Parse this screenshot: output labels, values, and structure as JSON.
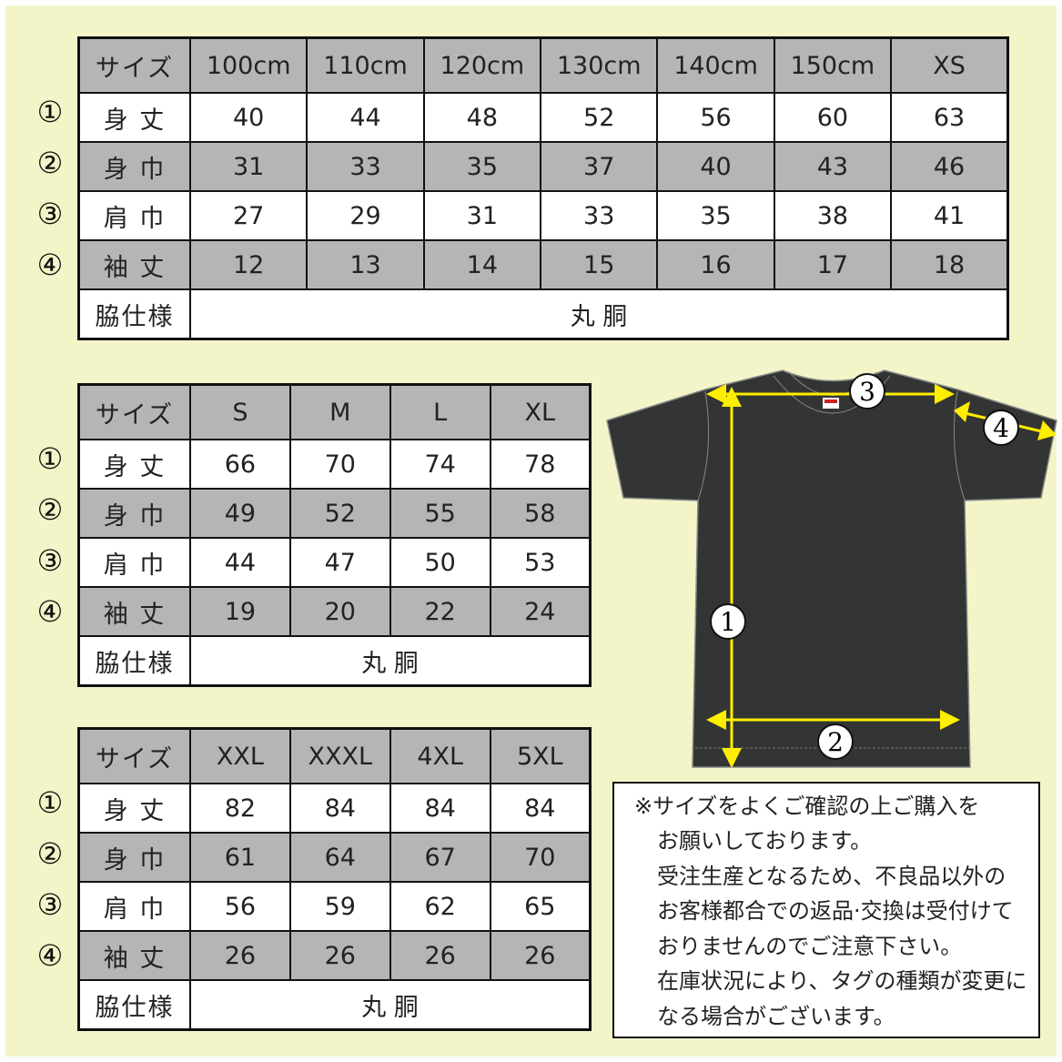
{
  "tables": [
    {
      "headers": [
        "サイズ",
        "100cm",
        "110cm",
        "120cm",
        "130cm",
        "140cm",
        "150cm",
        "XS"
      ],
      "rows": [
        {
          "marker": "①",
          "label": "身 丈",
          "values": [
            "40",
            "44",
            "48",
            "52",
            "56",
            "60",
            "63"
          ]
        },
        {
          "marker": "②",
          "label": "身 巾",
          "values": [
            "31",
            "33",
            "35",
            "37",
            "40",
            "43",
            "46"
          ]
        },
        {
          "marker": "③",
          "label": "肩 巾",
          "values": [
            "27",
            "29",
            "31",
            "33",
            "35",
            "38",
            "41"
          ]
        },
        {
          "marker": "④",
          "label": "袖 丈",
          "values": [
            "12",
            "13",
            "14",
            "15",
            "16",
            "17",
            "18"
          ]
        }
      ],
      "footer": {
        "label": "脇仕様",
        "value": "丸 胴"
      }
    },
    {
      "headers": [
        "サイズ",
        "S",
        "M",
        "L",
        "XL"
      ],
      "rows": [
        {
          "marker": "①",
          "label": "身 丈",
          "values": [
            "66",
            "70",
            "74",
            "78"
          ]
        },
        {
          "marker": "②",
          "label": "身 巾",
          "values": [
            "49",
            "52",
            "55",
            "58"
          ]
        },
        {
          "marker": "③",
          "label": "肩 巾",
          "values": [
            "44",
            "47",
            "50",
            "53"
          ]
        },
        {
          "marker": "④",
          "label": "袖 丈",
          "values": [
            "19",
            "20",
            "22",
            "24"
          ]
        }
      ],
      "footer": {
        "label": "脇仕様",
        "value": "丸 胴"
      }
    },
    {
      "headers": [
        "サイズ",
        "XXL",
        "XXXL",
        "4XL",
        "5XL"
      ],
      "rows": [
        {
          "marker": "①",
          "label": "身 丈",
          "values": [
            "82",
            "84",
            "84",
            "84"
          ]
        },
        {
          "marker": "②",
          "label": "身 巾",
          "values": [
            "61",
            "64",
            "67",
            "70"
          ]
        },
        {
          "marker": "③",
          "label": "肩 巾",
          "values": [
            "56",
            "59",
            "62",
            "65"
          ]
        },
        {
          "marker": "④",
          "label": "袖 丈",
          "values": [
            "26",
            "26",
            "26",
            "26"
          ]
        }
      ],
      "footer": {
        "label": "脇仕様",
        "value": "丸 胴"
      }
    }
  ],
  "diagram": {
    "markers": {
      "length": "1",
      "width": "2",
      "shoulder": "3",
      "sleeve": "4"
    },
    "shirt_color": "#323534",
    "arrow_color": "#ffee00"
  },
  "note": {
    "first_line": "※サイズをよくご確認の上ご購入を",
    "lines": [
      "お願いしております。",
      "受注生産となるため、不良品以外の",
      "お客様都合での返品·交換は受付けて",
      "おりませんのでご注意下さい。",
      "在庫状況により、タグの種類が変更に",
      "なる場合がございます。"
    ]
  },
  "colors": {
    "background": "#f3f5c8",
    "header_gray": "#b5b5b5"
  }
}
